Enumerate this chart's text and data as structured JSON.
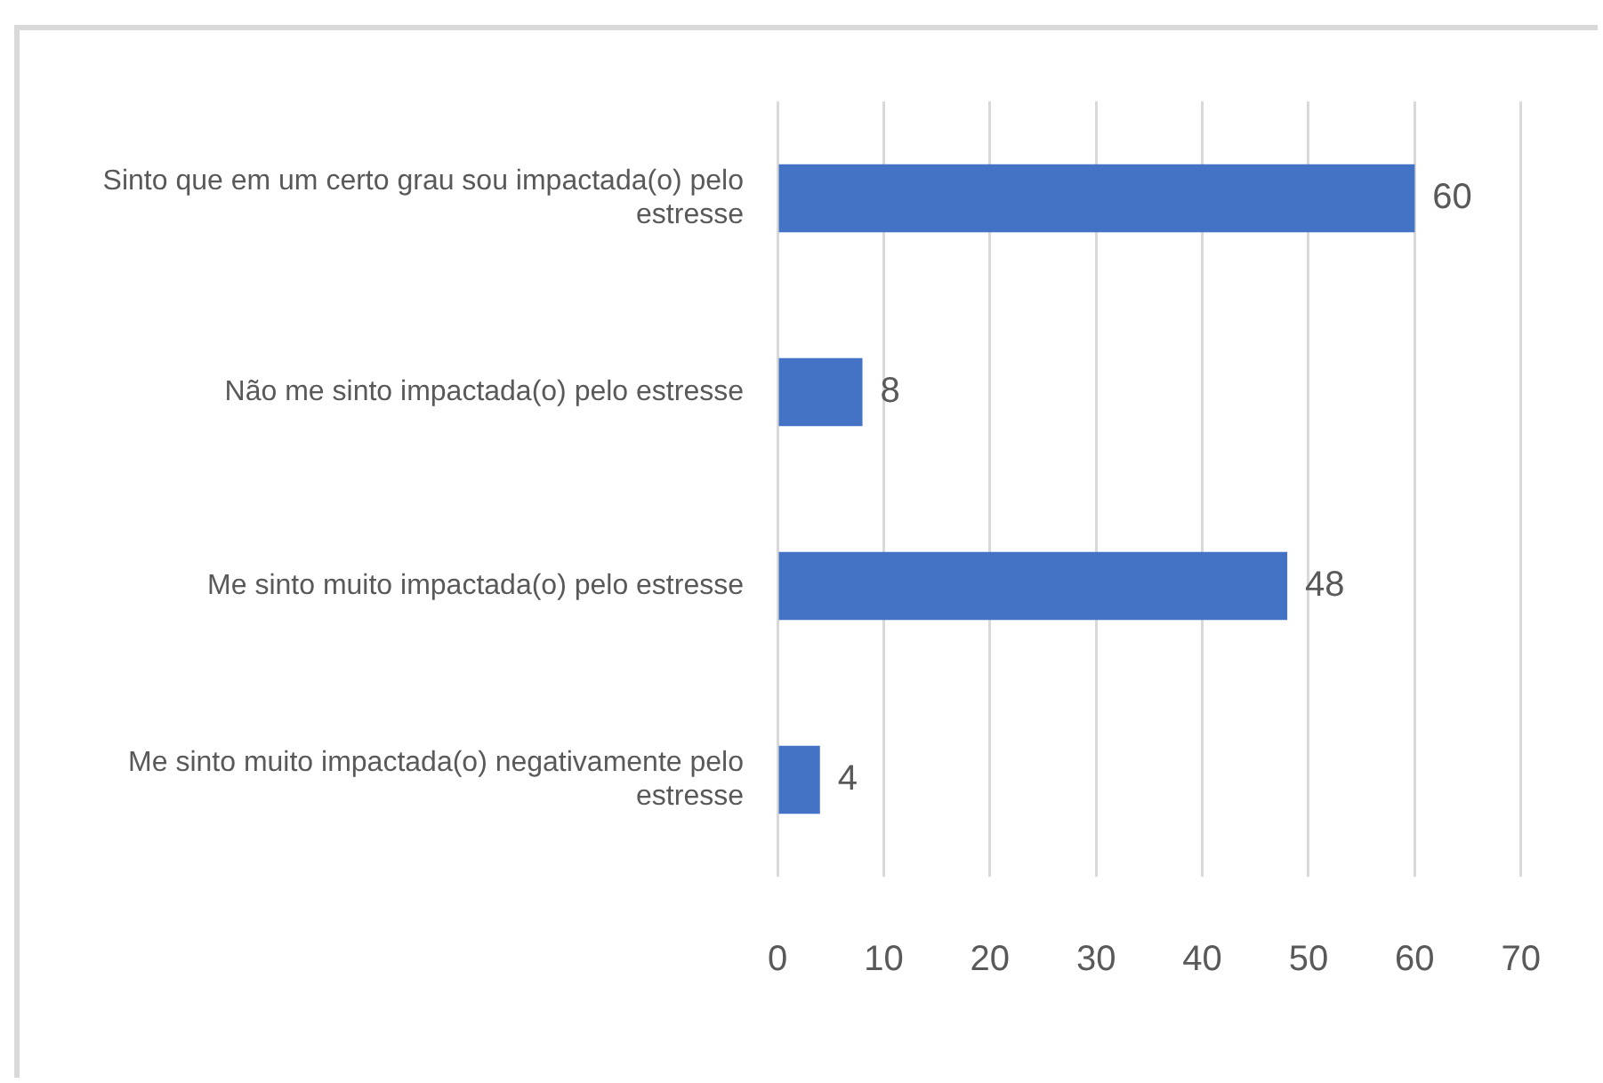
{
  "chart_data": {
    "type": "bar",
    "orientation": "horizontal",
    "categories": [
      "Sinto que em um certo grau sou impactada(o) pelo estresse",
      "Não me sinto impactada(o) pelo estresse",
      "Me sinto muito impactada(o) pelo estresse",
      "Me sinto muito impactada(o) negativamente pelo estresse"
    ],
    "values": [
      60,
      8,
      48,
      4
    ],
    "color": "#4472c4",
    "xlim": [
      0,
      70
    ],
    "xticks": [
      0,
      10,
      20,
      30,
      40,
      50,
      60,
      70
    ],
    "grid": "x",
    "data_labels": true
  }
}
